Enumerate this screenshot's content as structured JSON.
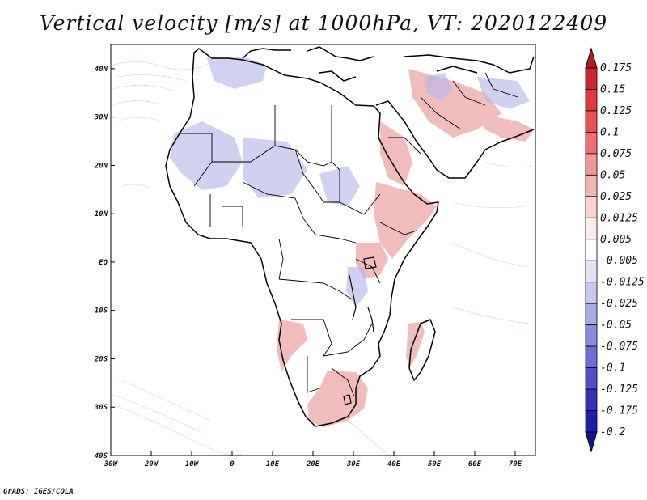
{
  "title": "Vertical velocity [m/s] at 1000hPa, VT: 2020122409",
  "credit": "GrADS: IGES/COLA",
  "map": {
    "lon_range": [
      -30,
      75
    ],
    "lat_range": [
      -40,
      45
    ],
    "lat_ticks": [
      "40N",
      "30N",
      "20N",
      "10N",
      "EQ",
      "10S",
      "20S",
      "30S",
      "40S"
    ],
    "lon_ticks": [
      "30W",
      "20W",
      "10W",
      "0",
      "10E",
      "20E",
      "30E",
      "40E",
      "50E",
      "60E",
      "70E"
    ]
  },
  "colorbar": {
    "levels": [
      "0.175",
      "0.15",
      "0.125",
      "0.1",
      "0.075",
      "0.05",
      "0.025",
      "0.0125",
      "0.005",
      "-0.005",
      "-0.0125",
      "-0.025",
      "-0.05",
      "-0.075",
      "-0.1",
      "-0.125",
      "-0.175",
      "-0.2"
    ],
    "colors": [
      "#b41e28",
      "#c8282d",
      "#dc3c3c",
      "#e65050",
      "#eb7373",
      "#f09696",
      "#f5b4b4",
      "#fad2d2",
      "#fdecec",
      "#ffffff",
      "#e4e4f8",
      "#c8c8f0",
      "#aaaae6",
      "#8c8cdc",
      "#6e6ed2",
      "#5050c8",
      "#3232b4",
      "#1e1ea0",
      "#14148c"
    ]
  }
}
